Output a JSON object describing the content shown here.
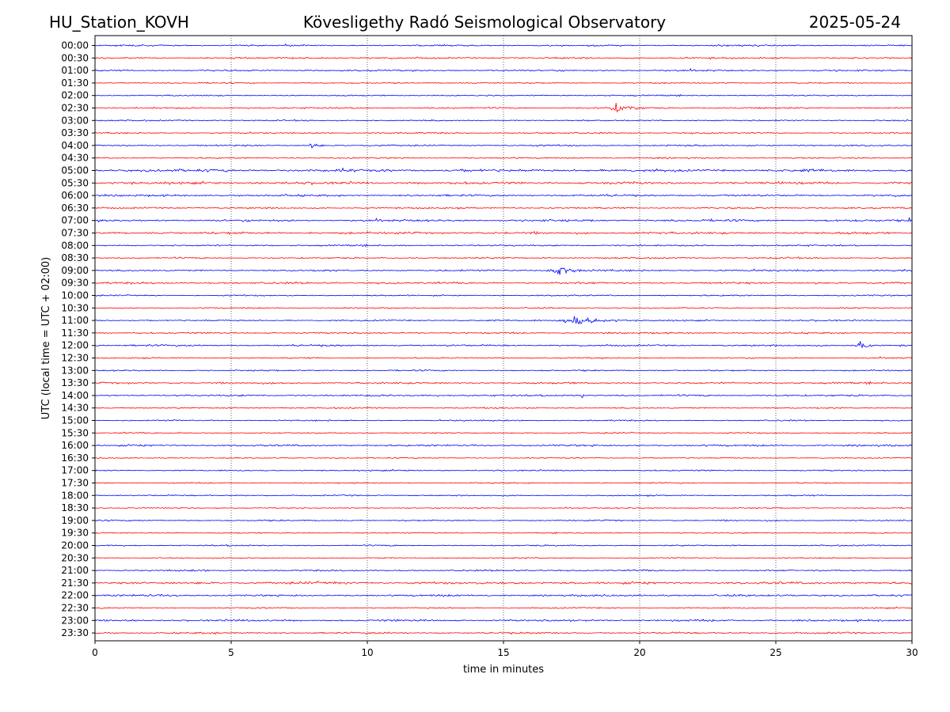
{
  "header": {
    "station": "HU_Station_KOVH",
    "observatory": "Kövesligethy Radó Seismological Observatory",
    "date": "2025-05-24"
  },
  "chart_data": {
    "type": "line",
    "subtype": "helicorder",
    "xlabel": "time in minutes",
    "ylabel": "UTC (local time = UTC + 02:00)",
    "xlim": [
      0,
      30
    ],
    "x_ticks": [
      0,
      5,
      10,
      15,
      20,
      25,
      30
    ],
    "vertical_gridlines": [
      5,
      10,
      15,
      20,
      25
    ],
    "grid_style": "dotted",
    "colors": {
      "even_row": "#0000ff",
      "odd_row": "#ff0000",
      "axis": "#000000"
    },
    "rows": [
      {
        "label": "00:00",
        "noise": 0.8
      },
      {
        "label": "00:30",
        "noise": 0.9
      },
      {
        "label": "01:00",
        "noise": 0.8
      },
      {
        "label": "01:30",
        "noise": 0.6
      },
      {
        "label": "02:00",
        "noise": 0.7
      },
      {
        "label": "02:30",
        "noise": 0.8,
        "events": [
          {
            "t": 19.2,
            "amp": 6,
            "dur": 1.6
          }
        ]
      },
      {
        "label": "03:00",
        "noise": 0.7
      },
      {
        "label": "03:30",
        "noise": 0.7
      },
      {
        "label": "04:00",
        "noise": 0.8,
        "events": [
          {
            "t": 8.0,
            "amp": 5,
            "dur": 0.5
          }
        ]
      },
      {
        "label": "04:30",
        "noise": 0.7
      },
      {
        "label": "05:00",
        "noise": 1.4,
        "events": [
          {
            "t": 9.1,
            "amp": 3,
            "dur": 0.3
          }
        ]
      },
      {
        "label": "05:30",
        "noise": 1.3
      },
      {
        "label": "06:00",
        "noise": 1.0
      },
      {
        "label": "06:30",
        "noise": 0.8
      },
      {
        "label": "07:00",
        "noise": 1.1,
        "events": [
          {
            "t": 29.9,
            "amp": 3,
            "dur": 0.2
          }
        ]
      },
      {
        "label": "07:30",
        "noise": 1.2
      },
      {
        "label": "08:00",
        "noise": 0.8
      },
      {
        "label": "08:30",
        "noise": 0.8
      },
      {
        "label": "09:00",
        "noise": 0.9,
        "events": [
          {
            "t": 17.0,
            "amp": 6,
            "dur": 1.5
          }
        ]
      },
      {
        "label": "09:30",
        "noise": 1.0,
        "events": [
          {
            "t": 26.5,
            "amp": 3,
            "dur": 0.3
          }
        ]
      },
      {
        "label": "10:00",
        "noise": 0.7
      },
      {
        "label": "10:30",
        "noise": 0.6
      },
      {
        "label": "11:00",
        "noise": 0.8,
        "events": [
          {
            "t": 17.6,
            "amp": 6,
            "dur": 2.2
          }
        ]
      },
      {
        "label": "11:30",
        "noise": 0.8
      },
      {
        "label": "12:00",
        "noise": 0.9,
        "events": [
          {
            "t": 28.1,
            "amp": 6,
            "dur": 0.6
          }
        ]
      },
      {
        "label": "12:30",
        "noise": 0.7
      },
      {
        "label": "13:00",
        "noise": 0.7
      },
      {
        "label": "13:30",
        "noise": 0.9
      },
      {
        "label": "14:00",
        "noise": 0.9,
        "events": [
          {
            "t": 17.9,
            "amp": 3,
            "dur": 0.4
          }
        ]
      },
      {
        "label": "14:30",
        "noise": 0.7
      },
      {
        "label": "15:00",
        "noise": 0.7
      },
      {
        "label": "15:30",
        "noise": 0.7
      },
      {
        "label": "16:00",
        "noise": 0.9
      },
      {
        "label": "16:30",
        "noise": 0.6
      },
      {
        "label": "17:00",
        "noise": 0.7
      },
      {
        "label": "17:30",
        "noise": 0.6
      },
      {
        "label": "18:00",
        "noise": 0.7
      },
      {
        "label": "18:30",
        "noise": 0.6
      },
      {
        "label": "19:00",
        "noise": 0.7
      },
      {
        "label": "19:30",
        "noise": 0.6
      },
      {
        "label": "20:00",
        "noise": 0.7
      },
      {
        "label": "20:30",
        "noise": 0.6
      },
      {
        "label": "21:00",
        "noise": 0.8
      },
      {
        "label": "21:30",
        "noise": 1.2
      },
      {
        "label": "22:00",
        "noise": 1.0
      },
      {
        "label": "22:30",
        "noise": 0.7
      },
      {
        "label": "23:00",
        "noise": 1.0
      },
      {
        "label": "23:30",
        "noise": 0.9
      }
    ]
  }
}
